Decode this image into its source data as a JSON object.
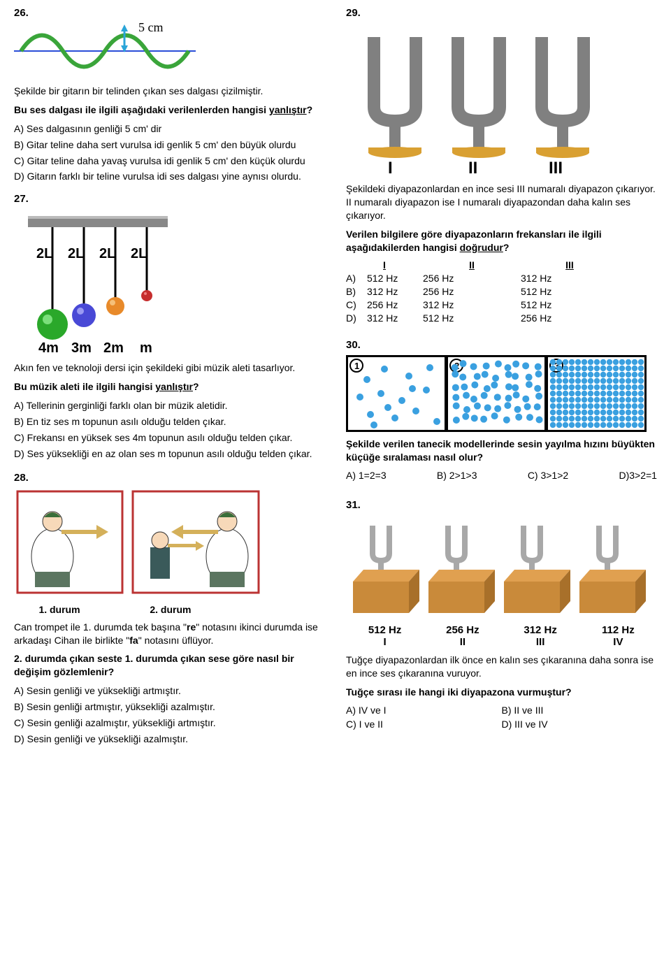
{
  "q26": {
    "num": "26.",
    "wave_label": "5 cm",
    "wave_color": "#3aa53a",
    "axis_color": "#2a4ed8",
    "arrow_color": "#2aa5d8",
    "intro": "Şekilde bir gitarın bir telinden çıkan ses dalgası çizilmiştir.",
    "question_lead": "Bu ses dalgası ile ilgili aşağıdaki verilenlerden hangisi ",
    "question_key": "yanlıştır",
    "question_tail": "?",
    "opts": [
      "A) Ses dalgasının genliği 5 cm' dir",
      "B) Gitar teline daha sert vurulsa idi genlik 5 cm' den büyük olurdu",
      "C) Gitar teline daha yavaş vurulsa idi genlik 5 cm' den küçük olurdu",
      "D) Gitarın farklı bir teline vurulsa idi ses dalgası yine aynısı olurdu."
    ]
  },
  "q27": {
    "num": "27.",
    "pend_labels": [
      "2L",
      "2L",
      "2L",
      "2L"
    ],
    "mass_labels": [
      "4m",
      "3m",
      "2m",
      "m"
    ],
    "ball_colors": [
      "#2aa82a",
      "#4949d6",
      "#e88a2a",
      "#c62e2e"
    ],
    "intro": "Akın fen ve teknoloji dersi için şekildeki gibi müzik aleti tasarlıyor.",
    "question_lead": "Bu müzik aleti ile ilgili hangisi ",
    "question_key": "yanlıştır",
    "question_tail": "?",
    "opts": [
      "A) Tellerinin gerginliği farklı olan bir müzik aletidir.",
      "B) En tiz ses m topunun asılı olduğu telden çıkar.",
      "C) Frekansı en yüksek ses 4m topunun asılı olduğu telden çıkar.",
      "D) Ses yüksekliği en az olan ses m topunun asılı olduğu telden çıkar."
    ]
  },
  "q28": {
    "num": "28.",
    "durum1": "1. durum",
    "durum2": "2. durum",
    "intro": "Can trompet ile 1. durumda tek başına \"re\" notasını ikinci durumda ise arkadaşı Cihan ile birlikte \"fa\" notasını üflüyor.",
    "question": "2. durumda çıkan seste 1. durumda çıkan sese göre nasıl bir değişim gözlemlenir?",
    "opts": [
      "A) Sesin genliği ve yüksekliği artmıştır.",
      "B) Sesin genliği artmıştır, yüksekliği azalmıştır.",
      "C) Sesin genliği azalmıştır, yüksekliği artmıştır.",
      "D) Sesin genliği ve yüksekliği azalmıştır."
    ],
    "trumpeter_colors": {
      "coat": "#ffffff",
      "pants": "#5b7560",
      "trumpet": "#d4b05a",
      "border": "#b33"
    }
  },
  "q29": {
    "num": "29.",
    "fork_labels": [
      "I",
      "II",
      "III"
    ],
    "fork_color": "#808080",
    "base_color": "#d9a032",
    "intro": "Şekildeki diyapazonlardan en ince sesi III numaralı diyapazon çıkarıyor. II numaralı diyapazon ise I numaralı diyapazondan daha kalın ses çıkarıyor.",
    "question_lead": "Verilen bilgilere göre diyapazonların frekansları ile ilgili aşağıdakilerden hangisi ",
    "question_key": "doğrudur",
    "question_tail": "?",
    "headers": [
      "I",
      "II",
      "III"
    ],
    "rows": [
      [
        "A)",
        "512 Hz",
        "256 Hz",
        "312 Hz"
      ],
      [
        "B)",
        "312 Hz",
        "256 Hz",
        "512 Hz"
      ],
      [
        "C)",
        "256 Hz",
        "312 Hz",
        "512 Hz"
      ],
      [
        "D)",
        "312 Hz",
        "512 Hz",
        "256 Hz"
      ]
    ]
  },
  "q30": {
    "num": "30.",
    "panel_labels": [
      "1",
      "2",
      "3"
    ],
    "particle_color": "#3aa0e0",
    "question": "Şekilde verilen tanecik modellerinde sesin yayılma hızını büyükten küçüğe sıralaması nasıl olur?",
    "opts": [
      "A) 1=2=3",
      "B) 2>1>3",
      "C) 3>1>2",
      "D)3>2=1"
    ]
  },
  "q31": {
    "num": "31.",
    "hz_labels": [
      "512 Hz",
      "256 Hz",
      "312 Hz",
      "112 Hz"
    ],
    "roman": [
      "I",
      "II",
      "III",
      "IV"
    ],
    "wood_color": "#c98a3a",
    "fork_color": "#a8a8a8",
    "intro": "Tuğçe diyapazonlardan ilk önce en kalın ses çıkaranına daha sonra ise en ince ses çıkaranına vuruyor.",
    "question": "Tuğçe sırası ile hangi iki diyapazona vurmuştur?",
    "opts": [
      [
        "A) IV ve I",
        "B) II ve III"
      ],
      [
        "C) I ve II",
        "D) III ve IV"
      ]
    ]
  }
}
